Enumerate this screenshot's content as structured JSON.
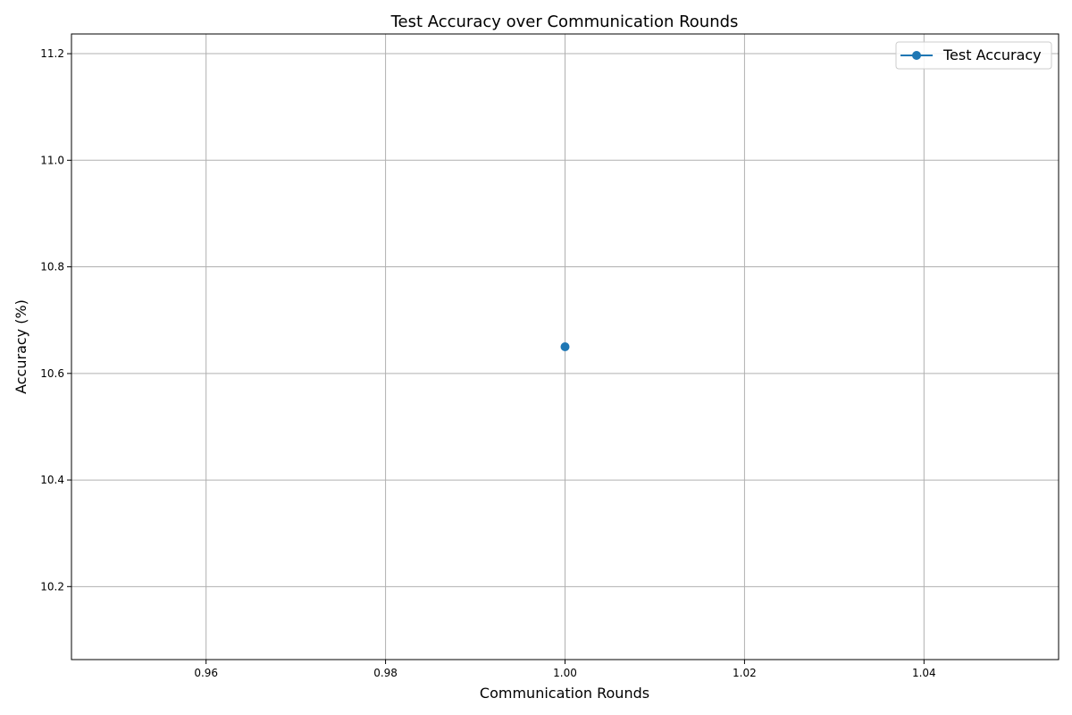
{
  "chart_data": {
    "type": "line",
    "title": "Test Accuracy over Communication Rounds",
    "xlabel": "Communication Rounds",
    "ylabel": "Accuracy (%)",
    "xlim": [
      0.945,
      1.055
    ],
    "ylim": [
      10.063,
      11.237
    ],
    "xticks": [
      0.96,
      0.98,
      1.0,
      1.02,
      1.04
    ],
    "xtick_labels": [
      "0.96",
      "0.98",
      "1.00",
      "1.02",
      "1.04"
    ],
    "yticks": [
      10.2,
      10.4,
      10.6,
      10.8,
      11.0,
      11.2
    ],
    "ytick_labels": [
      "10.2",
      "10.4",
      "10.6",
      "10.8",
      "11.0",
      "11.2"
    ],
    "grid": true,
    "legend_position": "upper right",
    "series": [
      {
        "name": "Test Accuracy",
        "color": "#1f77b4",
        "marker": "circle",
        "x": [
          1
        ],
        "y": [
          10.65
        ]
      }
    ]
  }
}
